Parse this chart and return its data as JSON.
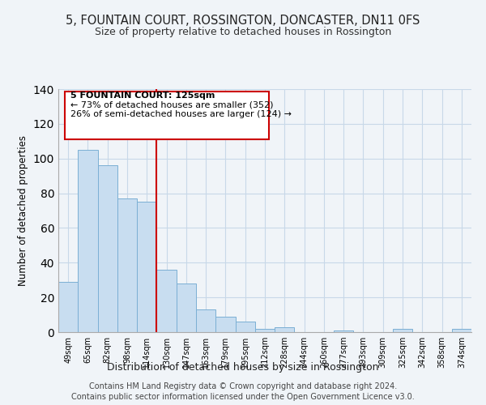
{
  "title": "5, FOUNTAIN COURT, ROSSINGTON, DONCASTER, DN11 0FS",
  "subtitle": "Size of property relative to detached houses in Rossington",
  "xlabel": "Distribution of detached houses by size in Rossington",
  "ylabel": "Number of detached properties",
  "bar_labels": [
    "49sqm",
    "65sqm",
    "82sqm",
    "98sqm",
    "114sqm",
    "130sqm",
    "147sqm",
    "163sqm",
    "179sqm",
    "195sqm",
    "212sqm",
    "228sqm",
    "244sqm",
    "260sqm",
    "277sqm",
    "293sqm",
    "309sqm",
    "325sqm",
    "342sqm",
    "358sqm",
    "374sqm"
  ],
  "bar_values": [
    29,
    105,
    96,
    77,
    75,
    36,
    28,
    13,
    9,
    6,
    2,
    3,
    0,
    0,
    1,
    0,
    0,
    2,
    0,
    0,
    2
  ],
  "bar_color": "#c8ddf0",
  "bar_edge_color": "#7bafd4",
  "vline_color": "#cc0000",
  "vline_pos": 4.5,
  "ylim": [
    0,
    140
  ],
  "annotation_title": "5 FOUNTAIN COURT: 125sqm",
  "annotation_line1": "← 73% of detached houses are smaller (352)",
  "annotation_line2": "26% of semi-detached houses are larger (124) →",
  "footer_line1": "Contains HM Land Registry data © Crown copyright and database right 2024.",
  "footer_line2": "Contains public sector information licensed under the Open Government Licence v3.0.",
  "bg_color": "#f0f4f8",
  "grid_color": "#c8d8e8"
}
